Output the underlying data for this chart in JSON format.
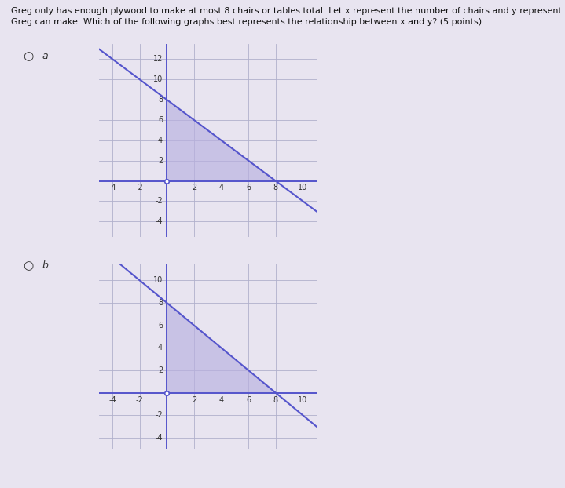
{
  "title_text": "Greg only has enough plywood to make at most 8 chairs or tables total. Let x represent the number of chairs and y represent the number of tables that\nGreg can make. Which of the following graphs best represents the relationship between x and y? (5 points)",
  "title_fontsize": 8.0,
  "shade_color": "#b8b0e0",
  "shade_alpha": 0.65,
  "line_color": "#5555cc",
  "grid_color": "#b0b0cc",
  "axis_color": "#5555cc",
  "page_bg": "#e8e4f0",
  "graph_bg": "#e8e4f0",
  "xticks": [
    -4,
    -2,
    2,
    4,
    6,
    8,
    10
  ],
  "yticks_a": [
    -4,
    -2,
    2,
    4,
    6,
    8,
    10,
    12
  ],
  "yticks_b": [
    -4,
    -2,
    2,
    4,
    6,
    8,
    10
  ],
  "tick_fontsize": 7,
  "graph_a_xlim": [
    -5,
    11
  ],
  "graph_a_ylim": [
    -5.5,
    13.5
  ],
  "graph_b_xlim": [
    -5,
    11
  ],
  "graph_b_ylim": [
    -5,
    11.5
  ],
  "line_sum": 8,
  "label_fontsize": 9
}
